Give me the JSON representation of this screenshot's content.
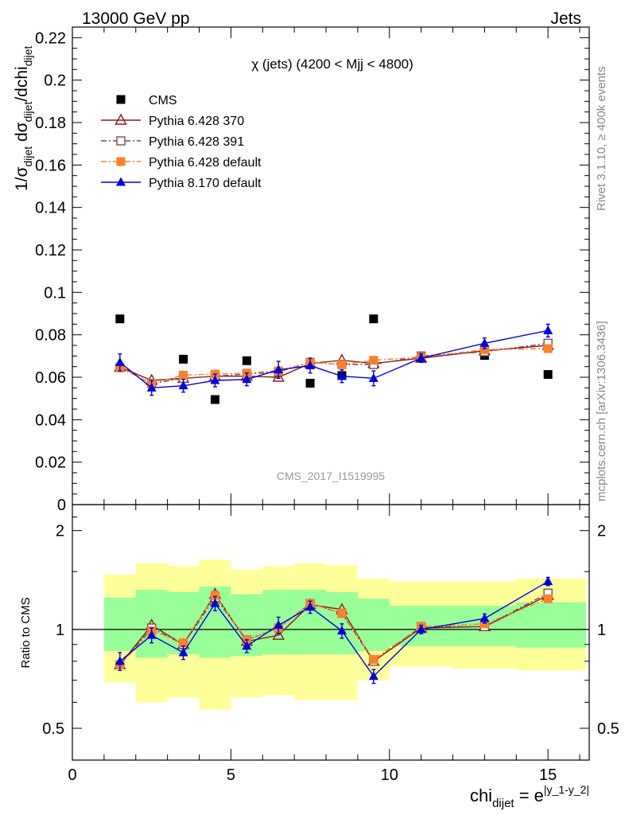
{
  "header": {
    "left": "13000 GeV pp",
    "right": "Jets"
  },
  "side_labels": {
    "rivet": "Rivet 3.1.10, ≥ 400k events",
    "mcplots": "mcplots.cern.ch [arXiv:1306.3436]"
  },
  "chart_data": [
    {
      "type": "scatter",
      "title": "χ (jets) (4200 < Mjj < 4800)",
      "watermark": "CMS_2017_I1519995",
      "ylabel": {
        "base": "1/σ",
        "sub1": "dijet",
        "mid": " dσ",
        "sub2": "dijet",
        "tail": "/dchi",
        "sub3": "dijet"
      },
      "xlim": [
        0,
        16.3
      ],
      "ylim": [
        0,
        0.225
      ],
      "yticks": [
        0,
        0.02,
        0.04,
        0.06,
        0.08,
        0.1,
        0.12,
        0.14,
        0.16,
        0.18,
        0.2,
        0.22
      ],
      "ytick_labels": [
        "0",
        "0.02",
        "0.04",
        "0.06",
        "0.08",
        "0.1",
        "0.12",
        "0.14",
        "0.16",
        "0.18",
        "0.2",
        "0.22"
      ],
      "x": [
        1.5,
        2.5,
        3.5,
        4.5,
        5.5,
        6.5,
        7.5,
        8.5,
        9.5,
        11,
        13,
        15
      ],
      "legend_position": "top-left",
      "series": [
        {
          "name": "CMS",
          "marker": "square-filled",
          "color": "#000000",
          "line": "none",
          "values": [
            0.0875,
            null,
            0.0685,
            0.0495,
            0.0678,
            null,
            0.0572,
            0.0608,
            0.0875,
            null,
            0.0703,
            0.0613
          ]
        },
        {
          "name": "Pythia 6.428 370",
          "marker": "triangle-open",
          "color": "#8b1a1a",
          "line": "solid",
          "values": [
            0.0648,
            0.0585,
            0.0595,
            0.0605,
            0.0605,
            0.06,
            0.0665,
            0.068,
            0.0665,
            0.069,
            0.0725,
            0.075
          ]
        },
        {
          "name": "Pythia 6.428 391",
          "marker": "square-open",
          "color": "#7a4a4a",
          "line": "dashdot",
          "values": [
            0.0645,
            0.057,
            0.0595,
            0.0605,
            0.0615,
            0.0625,
            0.067,
            0.066,
            0.066,
            0.07,
            0.072,
            0.076
          ]
        },
        {
          "name": "Pythia 6.428 default",
          "marker": "square-filled",
          "color": "#ff7f2a",
          "line": "dashdot",
          "values": [
            0.0645,
            0.057,
            0.061,
            0.0615,
            0.062,
            0.063,
            0.067,
            0.066,
            0.068,
            0.0695,
            0.073,
            0.0735
          ]
        },
        {
          "name": "Pythia 8.170 default",
          "marker": "triangle-filled",
          "color": "#0000dd",
          "line": "solid",
          "values": [
            0.067,
            0.055,
            0.056,
            0.0585,
            0.059,
            0.0635,
            0.0655,
            0.0605,
            0.0595,
            0.069,
            0.076,
            0.082
          ],
          "errors": [
            0.004,
            0.0035,
            0.003,
            0.003,
            0.003,
            0.004,
            0.0035,
            0.003,
            0.0035,
            0.002,
            0.0025,
            0.003
          ]
        }
      ]
    },
    {
      "type": "scatter",
      "ylabel": "Ratio to CMS",
      "xlabel": {
        "base": "chi",
        "sub": "dijet",
        "mid": " = e",
        "sup": "|y_1-y_2|"
      },
      "scale": "log",
      "xlim": [
        0,
        16.3
      ],
      "ylim": [
        0.4,
        2.4
      ],
      "yticks": [
        0.5,
        1,
        2
      ],
      "ytick_labels": [
        "0.5",
        "1",
        "2"
      ],
      "xticks": [
        0,
        5,
        10,
        15
      ],
      "xtick_labels": [
        "0",
        "5",
        "10",
        "15"
      ],
      "reference_line": 1,
      "bands": [
        {
          "x_low": 1,
          "x_high": 2,
          "inner": [
            0.86,
            1.25
          ],
          "outer": [
            0.69,
            1.47
          ]
        },
        {
          "x_low": 2,
          "x_high": 3,
          "inner": [
            0.82,
            1.32
          ],
          "outer": [
            0.6,
            1.59
          ]
        },
        {
          "x_low": 3,
          "x_high": 4,
          "inner": [
            0.84,
            1.3
          ],
          "outer": [
            0.62,
            1.56
          ]
        },
        {
          "x_low": 4,
          "x_high": 5,
          "inner": [
            0.82,
            1.35
          ],
          "outer": [
            0.57,
            1.63
          ]
        },
        {
          "x_low": 5,
          "x_high": 6,
          "inner": [
            0.83,
            1.28
          ],
          "outer": [
            0.62,
            1.52
          ]
        },
        {
          "x_low": 6,
          "x_high": 7,
          "inner": [
            0.84,
            1.32
          ],
          "outer": [
            0.63,
            1.56
          ]
        },
        {
          "x_low": 7,
          "x_high": 8,
          "inner": [
            0.84,
            1.32
          ],
          "outer": [
            0.61,
            1.59
          ]
        },
        {
          "x_low": 8,
          "x_high": 9,
          "inner": [
            0.84,
            1.3
          ],
          "outer": [
            0.61,
            1.57
          ]
        },
        {
          "x_low": 9,
          "x_high": 10,
          "inner": [
            0.86,
            1.24
          ],
          "outer": [
            0.7,
            1.43
          ]
        },
        {
          "x_low": 10,
          "x_high": 12,
          "inner": [
            0.89,
            1.18
          ],
          "outer": [
            0.77,
            1.4
          ]
        },
        {
          "x_low": 12,
          "x_high": 14,
          "inner": [
            0.89,
            1.18
          ],
          "outer": [
            0.76,
            1.4
          ]
        },
        {
          "x_low": 14,
          "x_high": 16.2,
          "inner": [
            0.88,
            1.21
          ],
          "outer": [
            0.75,
            1.43
          ]
        }
      ],
      "band_colors": {
        "inner": "#99ff99",
        "outer": "#ffff99"
      },
      "x": [
        1.5,
        2.5,
        3.5,
        4.5,
        5.5,
        6.5,
        7.5,
        8.5,
        9.5,
        11,
        13,
        15
      ],
      "series": [
        {
          "name": "Pythia 6.428 370",
          "marker": "triangle-open",
          "color": "#8b1a1a",
          "line": "solid",
          "values": [
            0.78,
            1.03,
            0.9,
            1.28,
            0.92,
            0.96,
            1.19,
            1.15,
            0.8,
            1.01,
            1.02,
            1.27
          ]
        },
        {
          "name": "Pythia 6.428 391",
          "marker": "square-open",
          "color": "#7a4a4a",
          "line": "dashdot",
          "values": [
            0.78,
            1.01,
            0.9,
            1.25,
            0.93,
            1.01,
            1.2,
            1.12,
            0.8,
            1.02,
            1.02,
            1.29
          ]
        },
        {
          "name": "Pythia 6.428 default",
          "marker": "square-filled",
          "color": "#ff7f2a",
          "line": "dashdot",
          "values": [
            0.78,
            0.99,
            0.91,
            1.27,
            0.93,
            1.01,
            1.2,
            1.12,
            0.81,
            1.02,
            1.04,
            1.24
          ]
        },
        {
          "name": "Pythia 8.170 default",
          "marker": "triangle-filled",
          "color": "#0000dd",
          "line": "solid",
          "values": [
            0.8,
            0.96,
            0.85,
            1.2,
            0.89,
            1.03,
            1.17,
            0.99,
            0.72,
            1.0,
            1.08,
            1.4
          ],
          "errors": [
            0.05,
            0.05,
            0.04,
            0.06,
            0.04,
            0.06,
            0.05,
            0.05,
            0.035,
            0.03,
            0.035,
            0.04
          ]
        }
      ]
    }
  ]
}
